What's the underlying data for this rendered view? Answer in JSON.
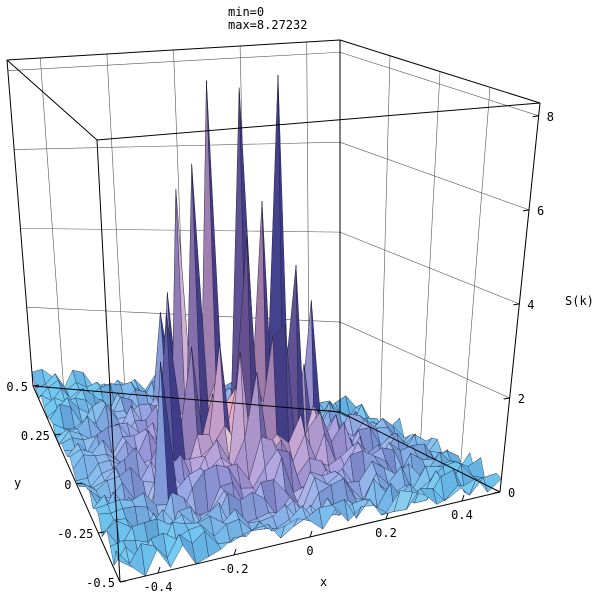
{
  "chart_data": {
    "type": "surface3d",
    "header": {
      "min_line": "min=0",
      "max_line": "max=8.27232"
    },
    "x_axis": {
      "label": "x",
      "range": [
        -0.5,
        0.5
      ],
      "ticks": [
        {
          "value": -0.4,
          "label": "-0.4"
        },
        {
          "value": -0.2,
          "label": "-0.2"
        },
        {
          "value": 0,
          "label": "0"
        },
        {
          "value": 0.2,
          "label": "0.2"
        },
        {
          "value": 0.4,
          "label": "0.4"
        }
      ]
    },
    "y_axis": {
      "label": "y",
      "range": [
        -0.5,
        0.5
      ],
      "ticks": [
        {
          "value": 0.5,
          "label": "0.5"
        },
        {
          "value": 0.25,
          "label": "0.25"
        },
        {
          "value": 0,
          "label": "0"
        },
        {
          "value": -0.25,
          "label": "-0.25"
        },
        {
          "value": -0.5,
          "label": "-0.5"
        }
      ]
    },
    "z_axis": {
      "label": "S(k)",
      "range": [
        0,
        8.27232
      ],
      "ticks": [
        {
          "value": 0,
          "label": "0"
        },
        {
          "value": 2,
          "label": "2"
        },
        {
          "value": 4,
          "label": "4"
        },
        {
          "value": 6,
          "label": "6"
        },
        {
          "value": 8,
          "label": "8"
        }
      ]
    },
    "peaks": [
      {
        "x": -0.06,
        "y": 0.1,
        "z": 8.27
      },
      {
        "x": 0.02,
        "y": 0.14,
        "z": 8.0
      },
      {
        "x": 0.17,
        "y": 0.2,
        "z": 8.1
      },
      {
        "x": -0.18,
        "y": 0.08,
        "z": 6.0
      },
      {
        "x": -0.12,
        "y": 0.02,
        "z": 6.6
      },
      {
        "x": 0.08,
        "y": 0.06,
        "z": 5.6
      },
      {
        "x": -0.01,
        "y": 0.0,
        "z": 5.0
      },
      {
        "x": 0.14,
        "y": 0.0,
        "z": 4.3
      },
      {
        "x": -0.22,
        "y": -0.04,
        "z": 3.6
      },
      {
        "x": 0.05,
        "y": -0.1,
        "z": 3.3
      },
      {
        "x": -0.08,
        "y": -0.15,
        "z": 2.9
      },
      {
        "x": 0.22,
        "y": 0.12,
        "z": 3.2
      }
    ],
    "grid_lines": true,
    "colors": {
      "center": "#f3a6b3",
      "mid": "#a9a5e6",
      "edge": "#6fc8f2",
      "dark": "#2a2a7a"
    }
  }
}
